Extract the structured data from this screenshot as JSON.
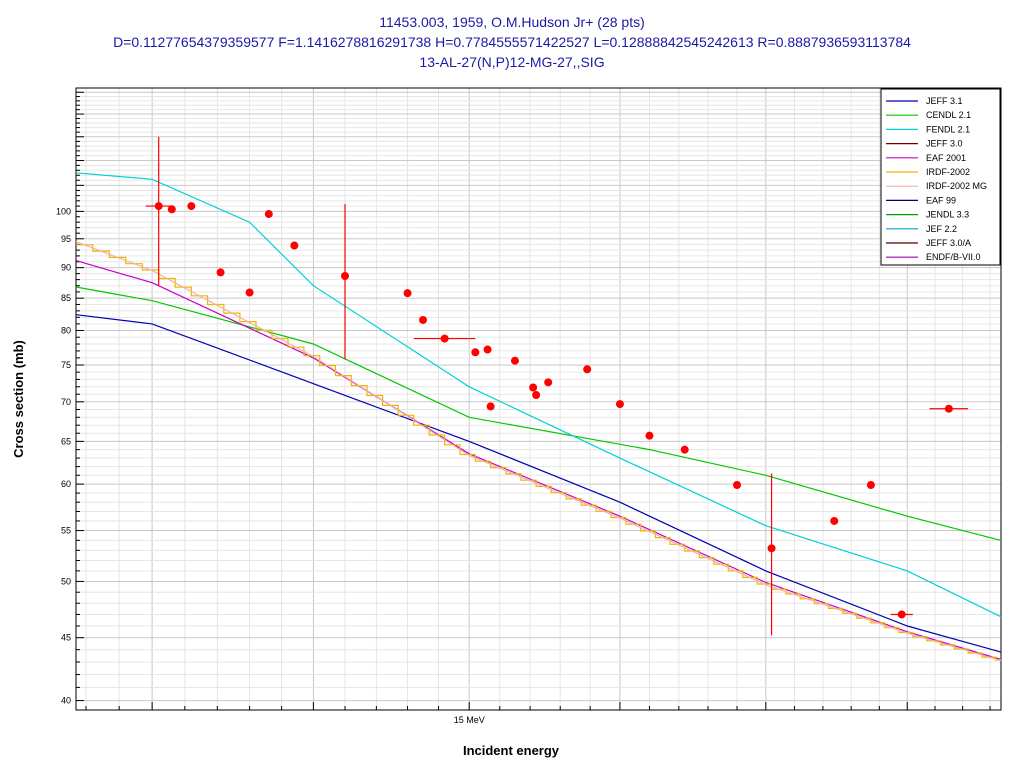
{
  "titles": {
    "line1": "11453.003, 1959, O.M.Hudson Jr+ (28 pts)",
    "line2": "D=0.11277654379359577 F=1.1416278816291738 H=0.7784555571422527 L=0.12888842545242613 R=0.8887936593113784",
    "line3": "13-AL-27(N,P)12-MG-27,,SIG"
  },
  "chart_data": {
    "type": "line",
    "title": "11453.003, 1959, O.M.Hudson Jr+ (28 pts)",
    "xlabel": "Incident energy",
    "ylabel": "Cross section (mb)",
    "x_scale": "log",
    "y_scale": "log",
    "xlim": [
      13.77,
      16.84
    ],
    "ylim": [
      39.3,
      126
    ],
    "x_tick_labels": [
      {
        "value": 15.0,
        "label": "15 MeV"
      }
    ],
    "y_ticks": [
      40,
      45,
      50,
      55,
      60,
      65,
      70,
      75,
      80,
      85,
      90,
      95,
      100
    ],
    "grid": true,
    "legend_position": "top-right",
    "series": [
      {
        "name": "JEFF 3.1",
        "color": "#0000b4",
        "x": [
          13.77,
          14.0,
          15.0,
          15.5,
          16.0,
          16.5,
          16.84
        ],
        "y": [
          82.4,
          81.0,
          65.0,
          58.0,
          51.0,
          46.0,
          43.8
        ]
      },
      {
        "name": "CENDL 2.1",
        "color": "#00c800",
        "x": [
          13.77,
          14.0,
          14.5,
          15.0,
          15.6,
          16.0,
          16.5,
          16.84
        ],
        "y": [
          86.8,
          84.6,
          78.0,
          68.0,
          64.0,
          61.0,
          56.5,
          54.0
        ]
      },
      {
        "name": "FENDL 2.1",
        "color": "#00d2d2",
        "x": [
          13.77,
          14.0,
          14.3,
          14.5,
          15.0,
          15.5,
          16.0,
          16.5,
          16.84
        ],
        "y": [
          107.5,
          106.2,
          98.0,
          87.0,
          72.0,
          63.0,
          55.5,
          51.0,
          46.8
        ]
      },
      {
        "name": "JEFF 3.0",
        "color": "#780000",
        "x": [],
        "y": []
      },
      {
        "name": "EAF 2001",
        "color": "#c800c8",
        "x": [
          13.77,
          14.0,
          14.5,
          15.0,
          15.5,
          16.0,
          16.5,
          16.84
        ],
        "y": [
          91.2,
          87.5,
          76.0,
          63.5,
          56.5,
          49.9,
          45.5,
          43.2
        ]
      },
      {
        "name": "IRDF-2002",
        "color": "#f0b400",
        "x": [
          13.77,
          14.0,
          14.5,
          15.0,
          15.5,
          16.0,
          16.5,
          16.84
        ],
        "y": [
          94.5,
          89.5,
          76.2,
          63.3,
          56.3,
          49.7,
          45.4,
          43.1
        ]
      },
      {
        "name": "IRDF-2002 MG",
        "color": "#f0b4a0",
        "x": [
          13.77,
          14.0,
          14.5,
          15.0,
          15.5,
          16.0,
          16.5,
          16.84
        ],
        "y": [
          94.5,
          89.5,
          76.2,
          63.3,
          56.3,
          49.7,
          45.4,
          43.1
        ]
      },
      {
        "name": "EAF 99",
        "color": "#000078",
        "x": [],
        "y": []
      },
      {
        "name": "JENDL 3.3",
        "color": "#00a000",
        "x": [],
        "y": []
      },
      {
        "name": "JEF 2.2",
        "color": "#00a0c8",
        "x": [],
        "y": []
      },
      {
        "name": "JEFF 3.0/A",
        "color": "#500000",
        "x": [],
        "y": []
      },
      {
        "name": "ENDF/B-VII.0",
        "color": "#a000a0",
        "x": [],
        "y": []
      }
    ],
    "points": {
      "color": "#ff0000",
      "x": [
        14.02,
        14.06,
        14.12,
        14.21,
        14.3,
        14.36,
        14.44,
        14.6,
        14.8,
        14.85,
        14.92,
        15.02,
        15.06,
        15.26,
        15.39,
        15.5,
        15.6,
        15.72,
        15.9,
        16.02,
        16.24,
        16.37,
        16.48,
        15.15,
        15.21,
        15.07,
        15.22,
        16.65
      ],
      "y": [
        101.0,
        100.4,
        101.0,
        89.2,
        85.9,
        99.5,
        93.8,
        88.6,
        85.8,
        81.6,
        78.8,
        76.8,
        77.2,
        72.6,
        74.4,
        69.7,
        65.7,
        64.0,
        59.9,
        53.2,
        56.0,
        59.9,
        47.0,
        75.6,
        71.9,
        69.4,
        70.9,
        69.1
      ],
      "xerr": [
        0.04,
        0,
        0,
        0,
        0,
        0,
        0,
        0,
        0,
        0,
        0.1,
        0,
        0,
        0,
        0,
        0,
        0,
        0,
        0,
        0,
        0,
        0,
        0.04,
        0,
        0,
        0,
        0,
        0.07
      ],
      "yerr": [
        14.0,
        0,
        0,
        0,
        0,
        0,
        0,
        12.8,
        0,
        0,
        0,
        0,
        0,
        0,
        0,
        0,
        0,
        0,
        0,
        8.0,
        0,
        0,
        0,
        0,
        0,
        0,
        0,
        0
      ]
    }
  }
}
